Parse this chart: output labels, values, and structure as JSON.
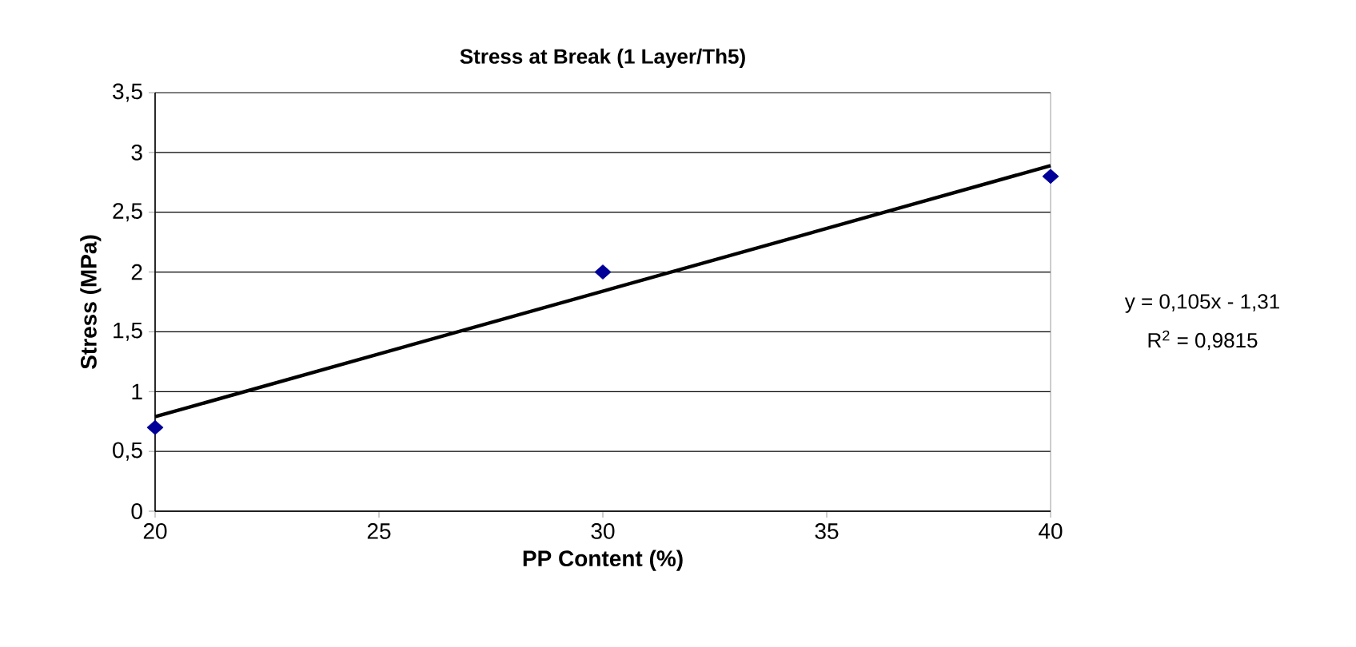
{
  "chart_data": {
    "type": "scatter",
    "title": "Stress at Break (1 Layer/Th5)",
    "xlabel": "PP Content (%)",
    "ylabel": "Stress (MPa)",
    "series": [
      {
        "x": [
          20,
          30,
          40
        ],
        "values": [
          0.7,
          2.0,
          2.8
        ],
        "color": "#000099",
        "marker": "diamond"
      },
      {
        "type": "line",
        "x": [
          20,
          40
        ],
        "values": [
          0.79,
          2.89
        ],
        "color": "#000000",
        "marker": "none",
        "line_style": "solid"
      }
    ],
    "xlim": [
      20,
      40
    ],
    "xticks": [
      20,
      25,
      30,
      35,
      40
    ],
    "ylim": [
      0,
      3.5
    ],
    "yticks": [
      0,
      {
        "value": 0.5,
        "label": "0,5"
      },
      1,
      {
        "value": 1.5,
        "label": "1,5"
      },
      2,
      {
        "value": 2.5,
        "label": "2,5"
      },
      3,
      {
        "value": 3.5,
        "label": "3,5"
      }
    ],
    "grid": "y",
    "annotations": [
      "y = 0,105x - 1,31",
      "R$^{2}$ = 0,9815"
    ]
  }
}
